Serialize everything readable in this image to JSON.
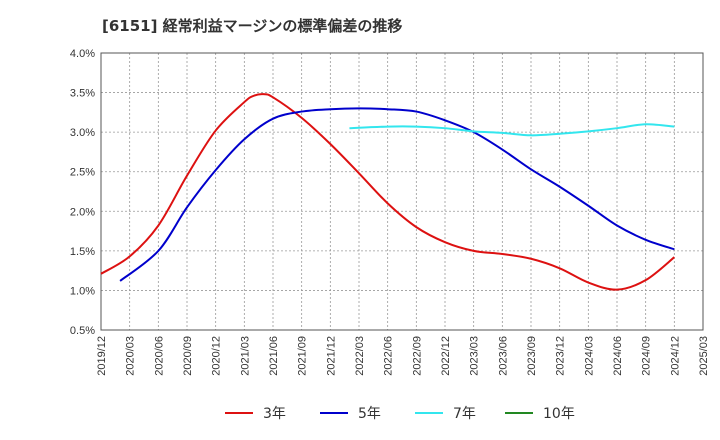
{
  "chart_data": {
    "type": "line",
    "title": "[6151]  経常利益マージンの標準偏差の推移",
    "xlabel": "",
    "ylabel": "",
    "ylim": [
      0.005,
      0.04
    ],
    "y_ticks": [
      "0.5%",
      "1.0%",
      "1.5%",
      "2.0%",
      "2.5%",
      "3.0%",
      "3.5%",
      "4.0%"
    ],
    "x_ticks": [
      "2019/12",
      "2020/03",
      "2020/06",
      "2020/09",
      "2020/12",
      "2021/03",
      "2021/06",
      "2021/09",
      "2021/12",
      "2022/03",
      "2022/06",
      "2022/09",
      "2022/12",
      "2023/03",
      "2023/06",
      "2023/09",
      "2023/12",
      "2024/03",
      "2024/06",
      "2024/09",
      "2024/12",
      "2025/03"
    ],
    "grid": true,
    "legend_position": "bottom",
    "series": [
      {
        "name": "3年",
        "color": "#dd1111",
        "points": [
          [
            "2019/12",
            0.0121
          ],
          [
            "2020/03",
            0.0143
          ],
          [
            "2020/06",
            0.0182
          ],
          [
            "2020/09",
            0.0245
          ],
          [
            "2020/12",
            0.0302
          ],
          [
            "2021/03",
            0.0338
          ],
          [
            "2021/04",
            0.0346
          ],
          [
            "2021/05",
            0.0348
          ],
          [
            "2021/06",
            0.0344
          ],
          [
            "2021/09",
            0.0318
          ],
          [
            "2021/12",
            0.0285
          ],
          [
            "2022/03",
            0.0248
          ],
          [
            "2022/06",
            0.021
          ],
          [
            "2022/09",
            0.018
          ],
          [
            "2022/12",
            0.0161
          ],
          [
            "2023/03",
            0.015
          ],
          [
            "2023/06",
            0.0146
          ],
          [
            "2023/09",
            0.014
          ],
          [
            "2023/12",
            0.0128
          ],
          [
            "2024/03",
            0.011
          ],
          [
            "2024/06",
            0.0101
          ],
          [
            "2024/09",
            0.0113
          ],
          [
            "2024/12",
            0.0142
          ]
        ]
      },
      {
        "name": "5年",
        "color": "#0000cc",
        "points": [
          [
            "2020/02",
            0.0112
          ],
          [
            "2020/06",
            0.015
          ],
          [
            "2020/09",
            0.0205
          ],
          [
            "2020/12",
            0.0252
          ],
          [
            "2021/03",
            0.0291
          ],
          [
            "2021/06",
            0.0317
          ],
          [
            "2021/09",
            0.0326
          ],
          [
            "2021/12",
            0.0329
          ],
          [
            "2022/03",
            0.033
          ],
          [
            "2022/06",
            0.0329
          ],
          [
            "2022/09",
            0.0326
          ],
          [
            "2022/12",
            0.0315
          ],
          [
            "2023/03",
            0.03
          ],
          [
            "2023/06",
            0.0278
          ],
          [
            "2023/09",
            0.0253
          ],
          [
            "2023/12",
            0.0231
          ],
          [
            "2024/03",
            0.0207
          ],
          [
            "2024/06",
            0.0182
          ],
          [
            "2024/09",
            0.0164
          ],
          [
            "2024/12",
            0.0152
          ]
        ]
      },
      {
        "name": "7年",
        "color": "#33e6ee",
        "points": [
          [
            "2022/02",
            0.0305
          ],
          [
            "2022/06",
            0.0307
          ],
          [
            "2022/09",
            0.0307
          ],
          [
            "2022/12",
            0.0305
          ],
          [
            "2023/03",
            0.0301
          ],
          [
            "2023/06",
            0.0299
          ],
          [
            "2023/09",
            0.0296
          ],
          [
            "2023/12",
            0.0298
          ],
          [
            "2024/03",
            0.0301
          ],
          [
            "2024/06",
            0.0305
          ],
          [
            "2024/09",
            0.031
          ],
          [
            "2024/12",
            0.0307
          ]
        ]
      },
      {
        "name": "10年",
        "color": "#228822",
        "points": []
      }
    ]
  }
}
